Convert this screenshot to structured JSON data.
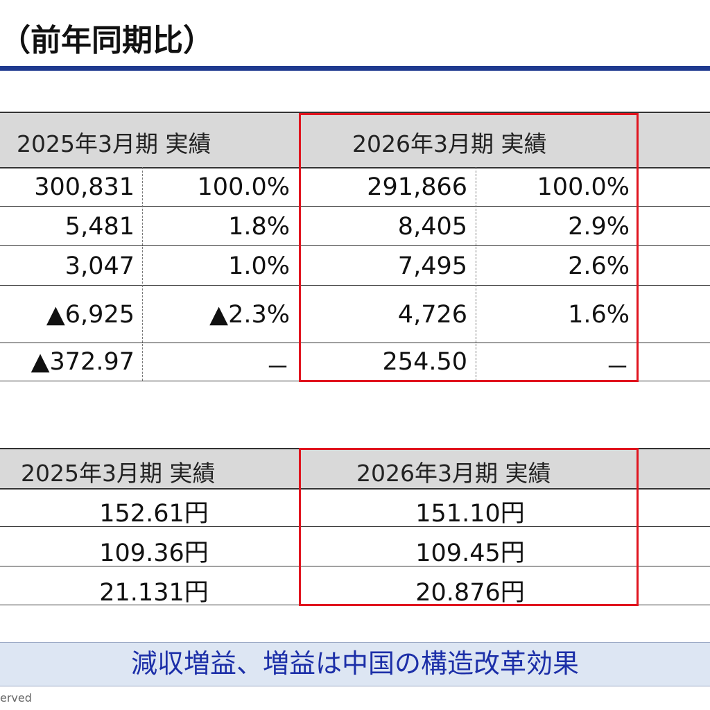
{
  "page_title": "（前年同期比）",
  "table1": {
    "headers": [
      "2025年3月期 実績",
      "2026年3月期 実績"
    ],
    "rows": [
      {
        "prev_value": "300,831",
        "prev_ratio": "100.0%",
        "curr_value": "291,866",
        "curr_ratio": "100.0%"
      },
      {
        "prev_value": "5,481",
        "prev_ratio": "1.8%",
        "curr_value": "8,405",
        "curr_ratio": "2.9%"
      },
      {
        "prev_value": "3,047",
        "prev_ratio": "1.0%",
        "curr_value": "7,495",
        "curr_ratio": "2.6%"
      },
      {
        "prev_value": "▲6,925",
        "prev_ratio": "▲2.3%",
        "curr_value": "4,726",
        "curr_ratio": "1.6%"
      },
      {
        "prev_value": "▲372.97",
        "prev_ratio": "－",
        "curr_value": "254.50",
        "curr_ratio": "－"
      }
    ]
  },
  "table2": {
    "headers": [
      "2025年3月期 実績",
      "2026年3月期 実績"
    ],
    "rows": [
      {
        "prev": "152.61円",
        "curr": "151.10円"
      },
      {
        "prev": "109.36円",
        "curr": "109.45円"
      },
      {
        "prev": "21.131円",
        "curr": "20.876円"
      }
    ]
  },
  "summary": "減収増益、増益は中国の構造改革効果",
  "copyright_fragment": "erved",
  "colors": {
    "title_bar": "#1f3a8f",
    "highlight_box": "#e0141e",
    "summary_text": "#1c2fa8",
    "header_bg": "#d9d9d9"
  }
}
